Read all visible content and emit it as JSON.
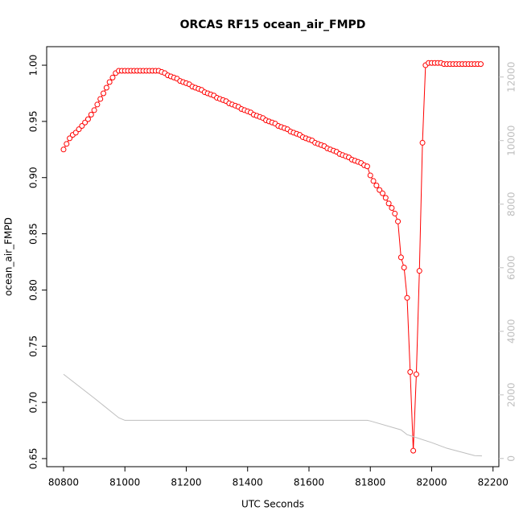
{
  "chart_data": {
    "type": "line",
    "title": "ORCAS RF15 ocean_air_FMPD",
    "x_label": "UTC Seconds",
    "y_label": "ocean_air_FMPD",
    "xlim": [
      80745,
      82219
    ],
    "ylim": [
      0.6428,
      1.0165
    ],
    "y2lim": [
      -258,
      12955
    ],
    "xticks": [
      80800,
      81000,
      81200,
      81400,
      81600,
      81800,
      82000,
      82200
    ],
    "yticks": [
      0.65,
      {
        "value": 0.7,
        "label": "0.70"
      },
      0.75,
      {
        "value": 0.8,
        "label": "0.80"
      },
      0.85,
      {
        "value": 0.9,
        "label": "0.90"
      },
      0.95,
      {
        "value": 1.0,
        "label": "1.00"
      }
    ],
    "y2ticks": [
      0,
      2000,
      4000,
      6000,
      8000,
      10000,
      12000
    ],
    "y2_color": "#bebebe",
    "series": [
      {
        "color": "#ff0000",
        "marker": "circle",
        "x": [
          80800,
          80810,
          80820,
          80830,
          80840,
          80850,
          80860,
          80870,
          80880,
          80890,
          80900,
          80910,
          80920,
          80930,
          80940,
          80950,
          80960,
          80970,
          80980,
          80990,
          81000,
          81010,
          81020,
          81030,
          81040,
          81050,
          81060,
          81070,
          81080,
          81090,
          81100,
          81110,
          81120,
          81130,
          81140,
          81150,
          81160,
          81170,
          81180,
          81190,
          81200,
          81210,
          81220,
          81230,
          81240,
          81250,
          81260,
          81270,
          81280,
          81290,
          81300,
          81310,
          81320,
          81330,
          81340,
          81350,
          81360,
          81370,
          81380,
          81390,
          81400,
          81410,
          81420,
          81430,
          81440,
          81450,
          81460,
          81470,
          81480,
          81490,
          81500,
          81510,
          81520,
          81530,
          81540,
          81550,
          81560,
          81570,
          81580,
          81590,
          81600,
          81610,
          81620,
          81630,
          81640,
          81650,
          81660,
          81670,
          81680,
          81690,
          81700,
          81710,
          81720,
          81730,
          81740,
          81750,
          81760,
          81770,
          81780,
          81790,
          81800,
          81810,
          81820,
          81830,
          81840,
          81850,
          81860,
          81870,
          81880,
          81890,
          81900,
          81910,
          81920,
          81930,
          81940,
          81950,
          81960,
          81970,
          81980,
          81990,
          82000,
          82010,
          82020,
          82030,
          82040,
          82050,
          82060,
          82070,
          82080,
          82090,
          82100,
          82110,
          82120,
          82130,
          82140,
          82150,
          82160
        ],
        "values": [
          0.925,
          0.93,
          0.935,
          0.938,
          0.94,
          0.943,
          0.946,
          0.949,
          0.952,
          0.956,
          0.96,
          0.965,
          0.97,
          0.975,
          0.98,
          0.985,
          0.989,
          0.993,
          0.995,
          0.995,
          0.995,
          0.995,
          0.995,
          0.995,
          0.995,
          0.995,
          0.995,
          0.995,
          0.995,
          0.995,
          0.995,
          0.995,
          0.994,
          0.993,
          0.991,
          0.99,
          0.989,
          0.988,
          0.986,
          0.985,
          0.984,
          0.983,
          0.981,
          0.98,
          0.979,
          0.978,
          0.976,
          0.975,
          0.974,
          0.973,
          0.971,
          0.97,
          0.969,
          0.968,
          0.966,
          0.965,
          0.964,
          0.963,
          0.961,
          0.96,
          0.959,
          0.958,
          0.956,
          0.955,
          0.954,
          0.953,
          0.951,
          0.95,
          0.949,
          0.948,
          0.946,
          0.945,
          0.944,
          0.943,
          0.941,
          0.94,
          0.939,
          0.938,
          0.936,
          0.935,
          0.934,
          0.933,
          0.931,
          0.93,
          0.929,
          0.928,
          0.926,
          0.925,
          0.924,
          0.923,
          0.921,
          0.92,
          0.919,
          0.918,
          0.916,
          0.915,
          0.914,
          0.913,
          0.911,
          0.91,
          0.902,
          0.897,
          0.893,
          0.889,
          0.886,
          0.882,
          0.877,
          0.873,
          0.868,
          0.861,
          0.829,
          0.82,
          0.793,
          0.727,
          0.657,
          0.725,
          0.817,
          0.931,
          1.0,
          1.002,
          1.002,
          1.002,
          1.002,
          1.002,
          1.001,
          1.001,
          1.001,
          1.001,
          1.001,
          1.001,
          1.001,
          1.001,
          1.001,
          1.001,
          1.001,
          1.001,
          1.001
        ]
      },
      {
        "color": "#bebebe",
        "axis": "y2",
        "x": [
          80800,
          80900,
          80980,
          81000,
          81790,
          81800,
          81900,
          81920,
          82000,
          82050,
          82140,
          82164
        ],
        "values": [
          2650,
          1900,
          1280,
          1200,
          1200,
          1180,
          900,
          750,
          500,
          320,
          90,
          80
        ]
      }
    ]
  }
}
